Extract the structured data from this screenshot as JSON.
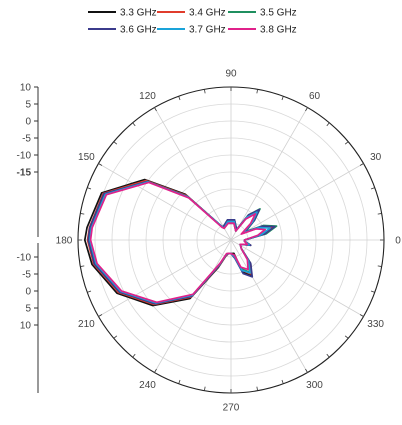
{
  "chart_data": {
    "type": "polar-line",
    "title": "",
    "legend": {
      "placement": "top-center",
      "items": [
        "3.3 GHz",
        "3.4 GHz",
        "3.5 GHz",
        "3.6 GHz",
        "3.7 GHz",
        "3.8 GHz"
      ]
    },
    "angle_unit": "deg",
    "angular_ticks": [
      "0",
      "30",
      "60",
      "90",
      "120",
      "150",
      "180",
      "210",
      "240",
      "270",
      "300",
      "330"
    ],
    "radial_axis": {
      "min": -35,
      "max": 10,
      "grid_rings": [
        -30,
        -25,
        -20,
        -15,
        -10,
        -5,
        0,
        5,
        10
      ],
      "tick_labels_upper": [
        "10",
        "5",
        "0",
        "-5",
        "-10",
        "-15"
      ],
      "tick_labels_lower": [
        "-10",
        "-5",
        "0",
        "5",
        "10"
      ],
      "highlighted_tick": "-15"
    },
    "grid": true,
    "series": [
      {
        "name": "3.3 GHz",
        "color": "#111111",
        "points": [
          [
            0,
            -31
          ],
          [
            10,
            -26
          ],
          [
            17,
            -22.5
          ],
          [
            24,
            -26
          ],
          [
            30,
            -31
          ],
          [
            40,
            -27
          ],
          [
            47,
            -23.5
          ],
          [
            55,
            -27
          ],
          [
            62,
            -32
          ],
          [
            80,
            -30
          ],
          [
            100,
            -30
          ],
          [
            120,
            -31
          ],
          [
            125,
            -30
          ],
          [
            135,
            -16
          ],
          [
            145,
            -4
          ],
          [
            160,
            5.5
          ],
          [
            175,
            7.5
          ],
          [
            180,
            8
          ],
          [
            190,
            6.5
          ],
          [
            205,
            2
          ],
          [
            220,
            -5
          ],
          [
            235,
            -14
          ],
          [
            245,
            -26
          ],
          [
            252,
            -30
          ],
          [
            260,
            -31
          ],
          [
            270,
            -31
          ],
          [
            282,
            -31
          ],
          [
            290,
            -25
          ],
          [
            300,
            -23
          ],
          [
            310,
            -26
          ],
          [
            320,
            -31
          ],
          [
            335,
            -32
          ],
          [
            345,
            -29
          ],
          [
            355,
            -31
          ],
          [
            360,
            -31
          ]
        ]
      },
      {
        "name": "3.4 GHz",
        "color": "#e03c2c",
        "points": [
          [
            0,
            -31
          ],
          [
            10,
            -25.5
          ],
          [
            17,
            -22
          ],
          [
            24,
            -25.5
          ],
          [
            30,
            -31
          ],
          [
            40,
            -26.5
          ],
          [
            47,
            -23
          ],
          [
            55,
            -26.5
          ],
          [
            62,
            -32
          ],
          [
            80,
            -29.5
          ],
          [
            100,
            -29.5
          ],
          [
            120,
            -31
          ],
          [
            125,
            -30
          ],
          [
            135,
            -16.5
          ],
          [
            145,
            -4.5
          ],
          [
            160,
            5
          ],
          [
            175,
            6.8
          ],
          [
            180,
            7.2
          ],
          [
            190,
            6
          ],
          [
            205,
            1.5
          ],
          [
            220,
            -5.5
          ],
          [
            235,
            -14.5
          ],
          [
            245,
            -26.5
          ],
          [
            252,
            -30
          ],
          [
            260,
            -31
          ],
          [
            270,
            -31
          ],
          [
            282,
            -30.5
          ],
          [
            290,
            -25.5
          ],
          [
            300,
            -23.5
          ],
          [
            310,
            -26.5
          ],
          [
            320,
            -31
          ],
          [
            335,
            -32
          ],
          [
            345,
            -29.5
          ],
          [
            355,
            -31
          ],
          [
            360,
            -31
          ]
        ]
      },
      {
        "name": "3.5 GHz",
        "color": "#1f8f5f",
        "points": [
          [
            0,
            -31
          ],
          [
            10,
            -24.5
          ],
          [
            17,
            -21
          ],
          [
            24,
            -24.5
          ],
          [
            30,
            -30
          ],
          [
            40,
            -26
          ],
          [
            47,
            -22.5
          ],
          [
            55,
            -26
          ],
          [
            62,
            -31.5
          ],
          [
            80,
            -29
          ],
          [
            100,
            -29
          ],
          [
            120,
            -30.5
          ],
          [
            125,
            -30
          ],
          [
            135,
            -17
          ],
          [
            145,
            -5
          ],
          [
            160,
            4.5
          ],
          [
            175,
            6.5
          ],
          [
            180,
            6.8
          ],
          [
            190,
            5.5
          ],
          [
            205,
            1
          ],
          [
            220,
            -6
          ],
          [
            235,
            -15
          ],
          [
            245,
            -27
          ],
          [
            252,
            -30.5
          ],
          [
            260,
            -31
          ],
          [
            270,
            -31
          ],
          [
            282,
            -30
          ],
          [
            290,
            -26
          ],
          [
            300,
            -24
          ],
          [
            310,
            -27
          ],
          [
            320,
            -31
          ],
          [
            335,
            -32
          ],
          [
            345,
            -30
          ],
          [
            355,
            -31
          ],
          [
            360,
            -31
          ]
        ]
      },
      {
        "name": "3.6 GHz",
        "color": "#3b3b8c",
        "points": [
          [
            0,
            -31
          ],
          [
            10,
            -25
          ],
          [
            17,
            -21.5
          ],
          [
            24,
            -25
          ],
          [
            30,
            -30.5
          ],
          [
            40,
            -26
          ],
          [
            47,
            -22.8
          ],
          [
            55,
            -26
          ],
          [
            62,
            -31.5
          ],
          [
            80,
            -29
          ],
          [
            100,
            -29
          ],
          [
            120,
            -30.5
          ],
          [
            125,
            -30
          ],
          [
            135,
            -17
          ],
          [
            145,
            -5
          ],
          [
            160,
            4.8
          ],
          [
            175,
            6.7
          ],
          [
            180,
            7
          ],
          [
            190,
            5.8
          ],
          [
            205,
            1.2
          ],
          [
            220,
            -5.8
          ],
          [
            235,
            -14.8
          ],
          [
            245,
            -26.8
          ],
          [
            252,
            -30.3
          ],
          [
            260,
            -31
          ],
          [
            270,
            -31
          ],
          [
            282,
            -29.5
          ],
          [
            290,
            -24.5
          ],
          [
            300,
            -22.5
          ],
          [
            310,
            -26
          ],
          [
            320,
            -31
          ],
          [
            335,
            -32
          ],
          [
            345,
            -29
          ],
          [
            355,
            -31
          ],
          [
            360,
            -31
          ]
        ]
      },
      {
        "name": "3.7 GHz",
        "color": "#1aa3d9",
        "points": [
          [
            0,
            -31
          ],
          [
            10,
            -26
          ],
          [
            17,
            -23
          ],
          [
            24,
            -26
          ],
          [
            30,
            -31
          ],
          [
            40,
            -26.8
          ],
          [
            47,
            -23.8
          ],
          [
            55,
            -26.8
          ],
          [
            62,
            -32
          ],
          [
            80,
            -29.5
          ],
          [
            100,
            -29.5
          ],
          [
            120,
            -31
          ],
          [
            125,
            -30
          ],
          [
            135,
            -17.2
          ],
          [
            145,
            -5.2
          ],
          [
            160,
            4.3
          ],
          [
            175,
            6.2
          ],
          [
            180,
            6.5
          ],
          [
            190,
            5.3
          ],
          [
            205,
            0.8
          ],
          [
            220,
            -6.2
          ],
          [
            235,
            -15.2
          ],
          [
            245,
            -27.2
          ],
          [
            252,
            -30.6
          ],
          [
            260,
            -31
          ],
          [
            270,
            -31
          ],
          [
            282,
            -30
          ],
          [
            290,
            -25.5
          ],
          [
            300,
            -23.8
          ],
          [
            310,
            -27
          ],
          [
            320,
            -31
          ],
          [
            335,
            -32
          ],
          [
            345,
            -29.5
          ],
          [
            355,
            -31
          ],
          [
            360,
            -31
          ]
        ]
      },
      {
        "name": "3.8 GHz",
        "color": "#e0218a",
        "points": [
          [
            0,
            -31
          ],
          [
            10,
            -27
          ],
          [
            17,
            -24.5
          ],
          [
            24,
            -27
          ],
          [
            30,
            -31.5
          ],
          [
            40,
            -27.5
          ],
          [
            47,
            -24.5
          ],
          [
            55,
            -27.5
          ],
          [
            62,
            -32
          ],
          [
            80,
            -30
          ],
          [
            100,
            -30
          ],
          [
            120,
            -31
          ],
          [
            125,
            -30.5
          ],
          [
            135,
            -17.5
          ],
          [
            145,
            -5.5
          ],
          [
            160,
            4
          ],
          [
            175,
            6
          ],
          [
            180,
            6.3
          ],
          [
            190,
            5
          ],
          [
            205,
            0.5
          ],
          [
            220,
            -6.5
          ],
          [
            235,
            -15.5
          ],
          [
            245,
            -27.5
          ],
          [
            252,
            -30.8
          ],
          [
            260,
            -31
          ],
          [
            270,
            -31
          ],
          [
            282,
            -30.5
          ],
          [
            290,
            -26.5
          ],
          [
            300,
            -25
          ],
          [
            310,
            -27.5
          ],
          [
            320,
            -31
          ],
          [
            335,
            -32
          ],
          [
            345,
            -30
          ],
          [
            355,
            -31
          ],
          [
            360,
            -31
          ]
        ]
      }
    ]
  }
}
